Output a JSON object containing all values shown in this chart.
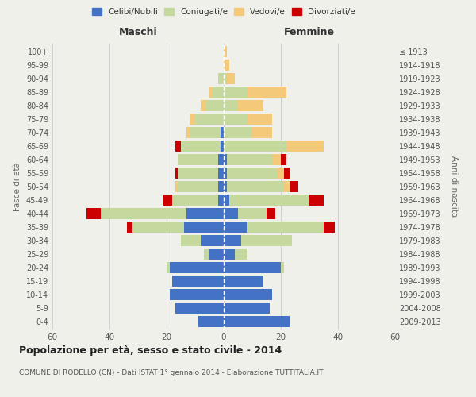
{
  "age_groups": [
    "0-4",
    "5-9",
    "10-14",
    "15-19",
    "20-24",
    "25-29",
    "30-34",
    "35-39",
    "40-44",
    "45-49",
    "50-54",
    "55-59",
    "60-64",
    "65-69",
    "70-74",
    "75-79",
    "80-84",
    "85-89",
    "90-94",
    "95-99",
    "100+"
  ],
  "birth_years": [
    "2009-2013",
    "2004-2008",
    "1999-2003",
    "1994-1998",
    "1989-1993",
    "1984-1988",
    "1979-1983",
    "1974-1978",
    "1969-1973",
    "1964-1968",
    "1959-1963",
    "1954-1958",
    "1949-1953",
    "1944-1948",
    "1939-1943",
    "1934-1938",
    "1929-1933",
    "1924-1928",
    "1919-1923",
    "1914-1918",
    "≤ 1913"
  ],
  "maschi": {
    "celibi": [
      9,
      17,
      19,
      18,
      19,
      5,
      8,
      14,
      13,
      2,
      2,
      2,
      2,
      1,
      1,
      0,
      0,
      0,
      0,
      0,
      0
    ],
    "coniugati": [
      0,
      0,
      0,
      0,
      1,
      2,
      7,
      18,
      30,
      16,
      14,
      14,
      14,
      14,
      11,
      10,
      6,
      4,
      2,
      0,
      0
    ],
    "vedovi": [
      0,
      0,
      0,
      0,
      0,
      0,
      0,
      0,
      0,
      0,
      1,
      0,
      0,
      0,
      1,
      2,
      2,
      1,
      0,
      0,
      0
    ],
    "divorziati": [
      0,
      0,
      0,
      0,
      0,
      0,
      0,
      2,
      5,
      3,
      0,
      1,
      0,
      2,
      0,
      0,
      0,
      0,
      0,
      0,
      0
    ]
  },
  "femmine": {
    "celibi": [
      23,
      16,
      17,
      14,
      20,
      4,
      6,
      8,
      5,
      2,
      1,
      1,
      1,
      0,
      0,
      0,
      0,
      0,
      0,
      0,
      0
    ],
    "coniugati": [
      0,
      0,
      0,
      0,
      1,
      4,
      18,
      27,
      10,
      28,
      20,
      18,
      16,
      22,
      10,
      8,
      5,
      8,
      1,
      0,
      0
    ],
    "vedovi": [
      0,
      0,
      0,
      0,
      0,
      0,
      0,
      0,
      0,
      0,
      2,
      2,
      3,
      13,
      7,
      9,
      9,
      14,
      3,
      2,
      1
    ],
    "divorziati": [
      0,
      0,
      0,
      0,
      0,
      0,
      0,
      4,
      3,
      5,
      3,
      2,
      2,
      0,
      0,
      0,
      0,
      0,
      0,
      0,
      0
    ]
  },
  "colors": {
    "celibi": "#4472c4",
    "coniugati": "#c5d89d",
    "vedovi": "#f5c97a",
    "divorziati": "#cc0000"
  },
  "xlim": 60,
  "title": "Popolazione per età, sesso e stato civile - 2014",
  "subtitle": "COMUNE DI RODELLO (CN) - Dati ISTAT 1° gennaio 2014 - Elaborazione TUTTITALIA.IT",
  "ylabel": "Fasce di età",
  "ylabel_right": "Anni di nascita",
  "legend_labels": [
    "Celibi/Nubili",
    "Coniugati/e",
    "Vedovi/e",
    "Divorziati/e"
  ],
  "background_color": "#f0f0eb",
  "grid_color": "#cccccc"
}
